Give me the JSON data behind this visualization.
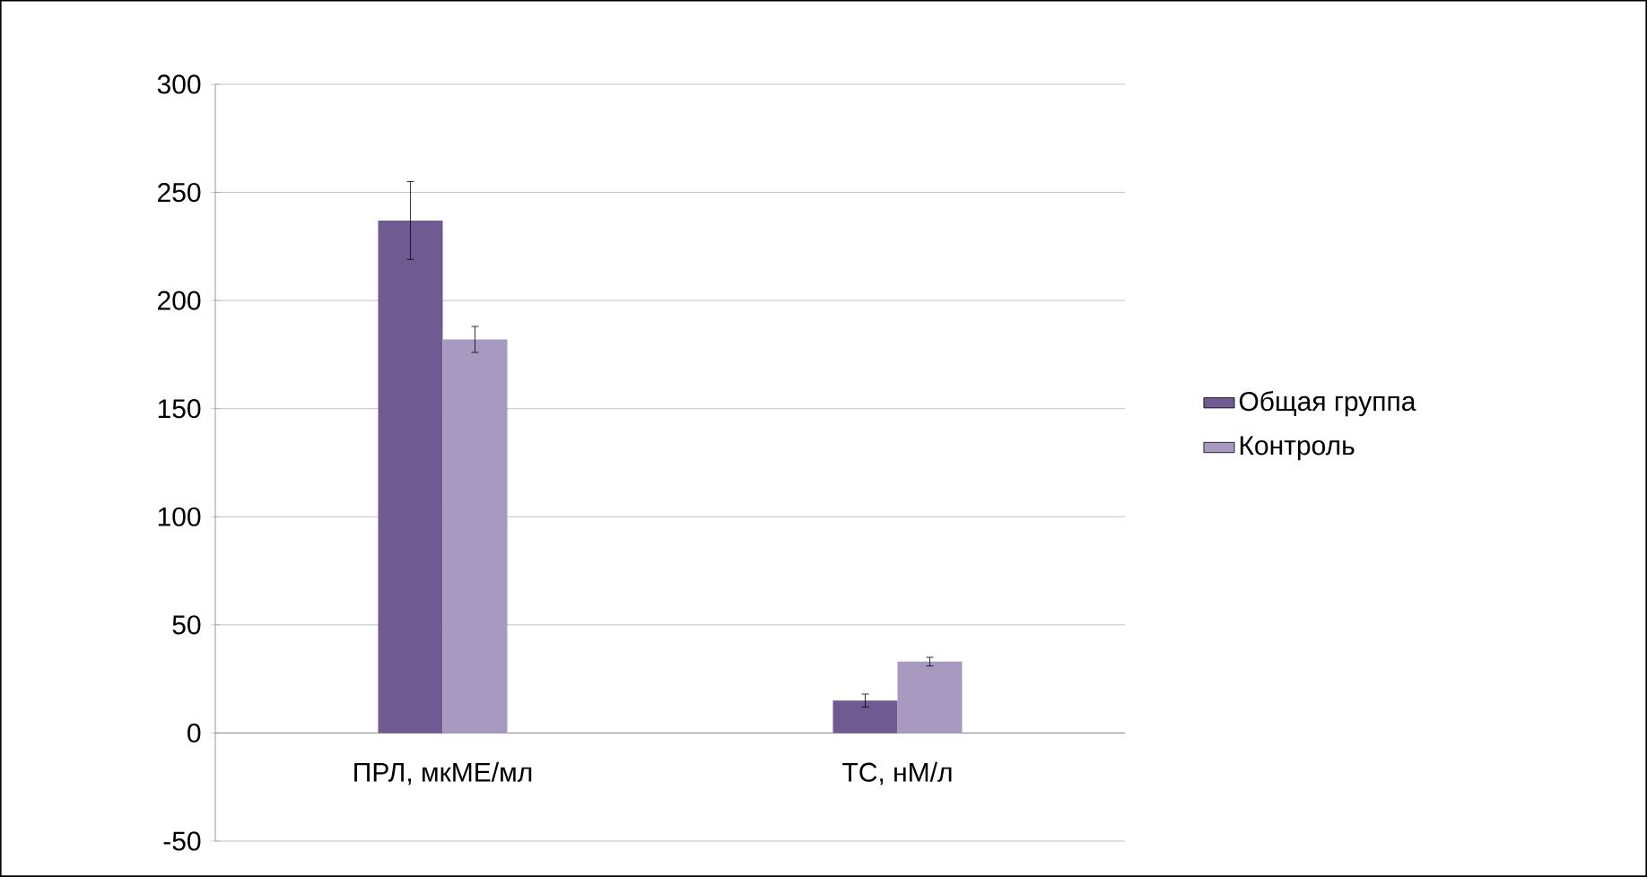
{
  "chart_data": {
    "type": "bar",
    "categories": [
      "ПРЛ, мкМЕ/мл",
      "ТС, нМ/л"
    ],
    "series": [
      {
        "name": "Общая группа",
        "color": "#6f5a91",
        "values": [
          237,
          15
        ],
        "errors": [
          18,
          3
        ]
      },
      {
        "name": "Контроль",
        "color": "#a899c0",
        "values": [
          182,
          33
        ],
        "errors": [
          6,
          2
        ]
      }
    ],
    "ylim": [
      -50,
      300
    ],
    "yticks": [
      -50,
      0,
      50,
      100,
      150,
      200,
      250,
      300
    ],
    "grid": "y",
    "legend": "right"
  }
}
